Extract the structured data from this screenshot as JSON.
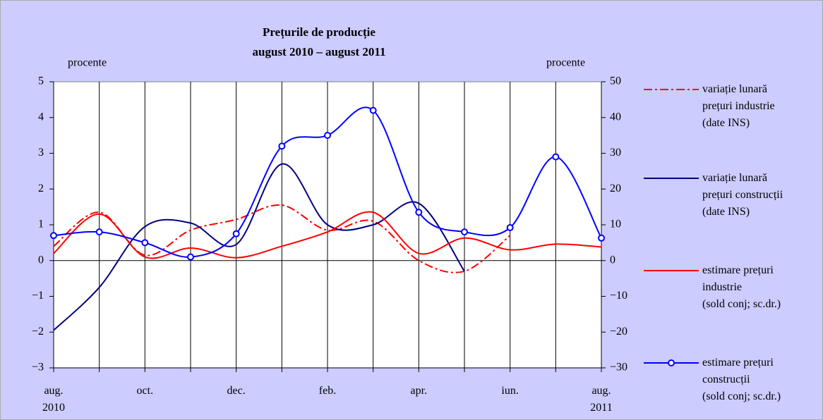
{
  "chart_data": {
    "type": "line",
    "title": "Prețurile de producție",
    "subtitle": "august 2010 – august 2011",
    "y_label": "procente",
    "y2_label": "procente",
    "categories": [
      "aug.\n2010",
      null,
      "oct.",
      null,
      "dec.",
      null,
      "feb.",
      null,
      "apr.",
      null,
      "iun.",
      null,
      "aug.\n2011"
    ],
    "ylim": [
      -3,
      5
    ],
    "yticks": [
      {
        "value": -3,
        "label": "−3"
      },
      {
        "value": -2,
        "label": "−2"
      },
      {
        "value": -1,
        "label": "−1"
      },
      0,
      1,
      2,
      3,
      4,
      5
    ],
    "y2lim": [
      -30,
      50
    ],
    "y2ticks": [
      {
        "value": -30,
        "label": "−30"
      },
      {
        "value": -20,
        "label": "−20"
      },
      {
        "value": -10,
        "label": "−10"
      },
      0,
      10,
      20,
      30,
      40,
      50
    ],
    "grid": true,
    "legend": "right",
    "series": [
      {
        "name": "variație lunară\nprețuri industrie\n(date INS)",
        "color": "#ff0000",
        "style": "dashdot",
        "axis": "y",
        "values": [
          0.4,
          1.35,
          0.15,
          0.85,
          1.15,
          1.55,
          0.85,
          1.1,
          0.0,
          -0.3,
          0.7,
          null,
          null
        ]
      },
      {
        "name": "variație lunară\nprețuri construcții\n(date INS)",
        "color": "#000080",
        "style": "solid",
        "axis": "y",
        "values": [
          -1.95,
          -0.75,
          0.95,
          1.05,
          0.45,
          2.7,
          1.0,
          1.0,
          1.6,
          -0.3,
          null,
          null,
          null
        ]
      },
      {
        "name": "estimare prețuri\nindustrie\n(sold conj; sc.dr.)",
        "color": "#ff0000",
        "style": "solid",
        "axis": "y2",
        "values": [
          2,
          13,
          1,
          3.5,
          0.8,
          4,
          8,
          13.5,
          2,
          6.3,
          3,
          4.6,
          3.8
        ]
      },
      {
        "name": "estimare prețuri\nconstrucții\n(sold conj; sc.dr.)",
        "color": "#0000ff",
        "style": "marker",
        "axis": "y2",
        "values": [
          7,
          8,
          5,
          1,
          7.5,
          32,
          35,
          42,
          13.5,
          8,
          9.2,
          29,
          6.3
        ]
      }
    ]
  }
}
